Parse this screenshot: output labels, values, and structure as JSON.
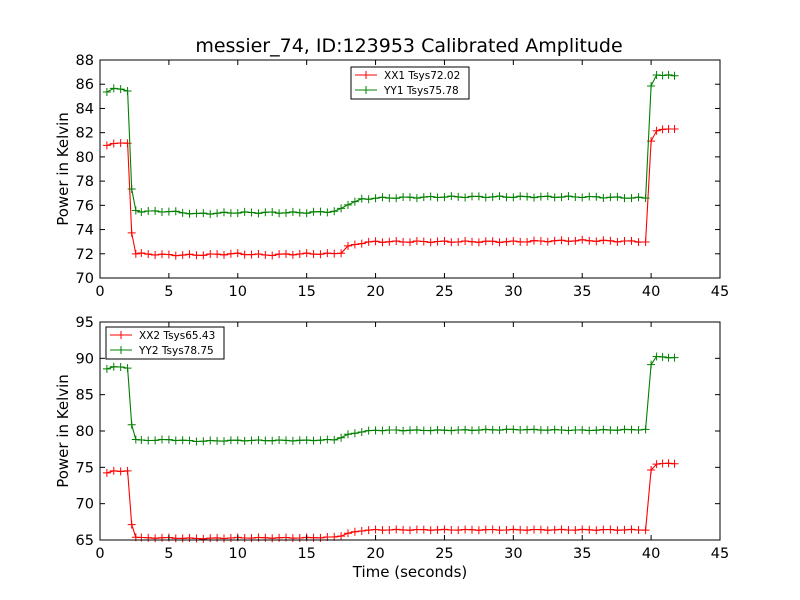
{
  "figure": {
    "title": "messier_74, ID:123953 Calibrated Amplitude"
  },
  "chart_data": [
    {
      "type": "line",
      "title": "messier_74, ID:123953 Calibrated Amplitude",
      "xlabel": "",
      "ylabel": "Power in Kelvin",
      "xlim": [
        0,
        45
      ],
      "ylim": [
        70,
        88
      ],
      "xticks": [
        0,
        5,
        10,
        15,
        20,
        25,
        30,
        35,
        40,
        45
      ],
      "yticks": [
        70,
        72,
        74,
        76,
        78,
        80,
        82,
        84,
        86,
        88
      ],
      "grid": false,
      "legend_position": "upper-center",
      "marker": "+",
      "series": [
        {
          "name": "XX1 Tsys72.02",
          "color": "#ff0000",
          "points": [
            [
              0.5,
              80.9
            ],
            [
              1,
              81.1
            ],
            [
              1.5,
              81.2
            ],
            [
              2,
              81.1
            ],
            [
              2.3,
              73.7
            ],
            [
              2.6,
              72.0
            ],
            [
              3,
              72.0
            ],
            [
              5,
              71.9
            ],
            [
              7,
              71.9
            ],
            [
              10,
              72.0
            ],
            [
              12,
              71.9
            ],
            [
              15,
              72.0
            ],
            [
              17,
              72.0
            ],
            [
              17.5,
              72.1
            ],
            [
              18,
              72.6
            ],
            [
              19,
              72.9
            ],
            [
              20,
              73.0
            ],
            [
              25,
              73.0
            ],
            [
              30,
              73.0
            ],
            [
              35,
              73.1
            ],
            [
              39.6,
              73.0
            ],
            [
              40,
              81.3
            ],
            [
              40.4,
              82.2
            ],
            [
              41.7,
              82.3
            ]
          ]
        },
        {
          "name": "YY1 Tsys75.78",
          "color": "#008000",
          "points": [
            [
              0.5,
              85.4
            ],
            [
              1,
              85.6
            ],
            [
              1.5,
              85.6
            ],
            [
              2,
              85.5
            ],
            [
              2.3,
              77.4
            ],
            [
              2.6,
              75.6
            ],
            [
              3,
              75.5
            ],
            [
              5,
              75.5
            ],
            [
              7,
              75.3
            ],
            [
              10,
              75.4
            ],
            [
              15,
              75.4
            ],
            [
              17,
              75.5
            ],
            [
              17.5,
              75.7
            ],
            [
              18,
              76.1
            ],
            [
              19,
              76.5
            ],
            [
              20,
              76.6
            ],
            [
              25,
              76.7
            ],
            [
              30,
              76.7
            ],
            [
              35,
              76.7
            ],
            [
              39.6,
              76.6
            ],
            [
              40,
              85.8
            ],
            [
              40.4,
              86.8
            ],
            [
              41.7,
              86.7
            ]
          ]
        }
      ]
    },
    {
      "type": "line",
      "title": "",
      "xlabel": "Time (seconds)",
      "ylabel": "Power in Kelvin",
      "xlim": [
        0,
        45
      ],
      "ylim": [
        65,
        95
      ],
      "xticks": [
        0,
        5,
        10,
        15,
        20,
        25,
        30,
        35,
        40,
        45
      ],
      "yticks": [
        65,
        70,
        75,
        80,
        85,
        90,
        95
      ],
      "grid": false,
      "legend_position": "upper-left",
      "marker": "+",
      "series": [
        {
          "name": "XX2 Tsys65.43",
          "color": "#ff0000",
          "points": [
            [
              0.5,
              74.2
            ],
            [
              1,
              74.5
            ],
            [
              1.5,
              74.5
            ],
            [
              2,
              74.5
            ],
            [
              2.3,
              67.1
            ],
            [
              2.6,
              65.4
            ],
            [
              3,
              65.3
            ],
            [
              5,
              65.3
            ],
            [
              7,
              65.2
            ],
            [
              10,
              65.3
            ],
            [
              15,
              65.3
            ],
            [
              17,
              65.4
            ],
            [
              17.5,
              65.6
            ],
            [
              18,
              65.9
            ],
            [
              19,
              66.3
            ],
            [
              20,
              66.4
            ],
            [
              25,
              66.4
            ],
            [
              30,
              66.4
            ],
            [
              35,
              66.4
            ],
            [
              39.6,
              66.4
            ],
            [
              40,
              74.6
            ],
            [
              40.4,
              75.5
            ],
            [
              41.7,
              75.5
            ]
          ]
        },
        {
          "name": "YY2 Tsys78.75",
          "color": "#008000",
          "points": [
            [
              0.5,
              88.5
            ],
            [
              1,
              88.9
            ],
            [
              1.5,
              88.8
            ],
            [
              2,
              88.6
            ],
            [
              2.3,
              80.8
            ],
            [
              2.6,
              78.8
            ],
            [
              3,
              78.7
            ],
            [
              5,
              78.8
            ],
            [
              7,
              78.6
            ],
            [
              10,
              78.7
            ],
            [
              15,
              78.7
            ],
            [
              17,
              78.8
            ],
            [
              17.5,
              79.1
            ],
            [
              18,
              79.5
            ],
            [
              19,
              79.9
            ],
            [
              20,
              80.1
            ],
            [
              25,
              80.1
            ],
            [
              30,
              80.2
            ],
            [
              35,
              80.1
            ],
            [
              39.6,
              80.2
            ],
            [
              40,
              89.2
            ],
            [
              40.4,
              90.2
            ],
            [
              41.7,
              90.1
            ]
          ]
        }
      ]
    }
  ]
}
